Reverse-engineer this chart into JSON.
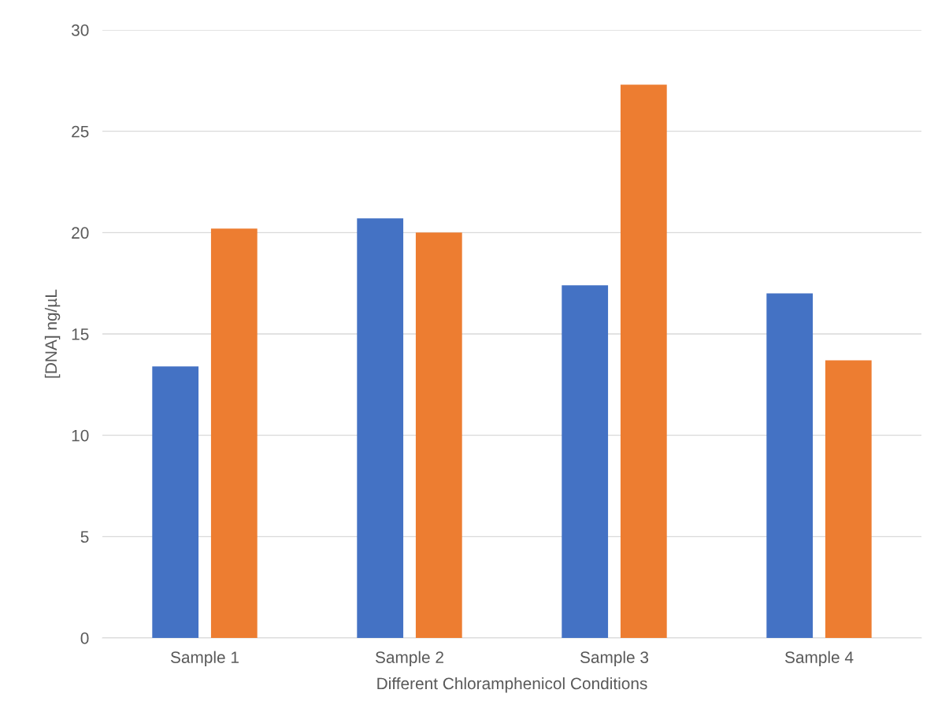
{
  "chart_data": {
    "type": "bar",
    "xlabel": "Different Chloramphenicol Conditions",
    "ylabel": "[DNA] ng/µL",
    "categories": [
      "Sample 1",
      "Sample 2",
      "Sample 3",
      "Sample 4"
    ],
    "series": [
      {
        "color": "#4472c4",
        "values": [
          13.4,
          20.7,
          17.4,
          17.0
        ]
      },
      {
        "color": "#ed7d31",
        "values": [
          20.2,
          20.0,
          27.3,
          13.7
        ]
      }
    ],
    "ylim": [
      0,
      30
    ],
    "yticks": [
      0,
      5,
      10,
      15,
      20,
      25,
      30
    ],
    "grid": "y",
    "legend": false
  }
}
